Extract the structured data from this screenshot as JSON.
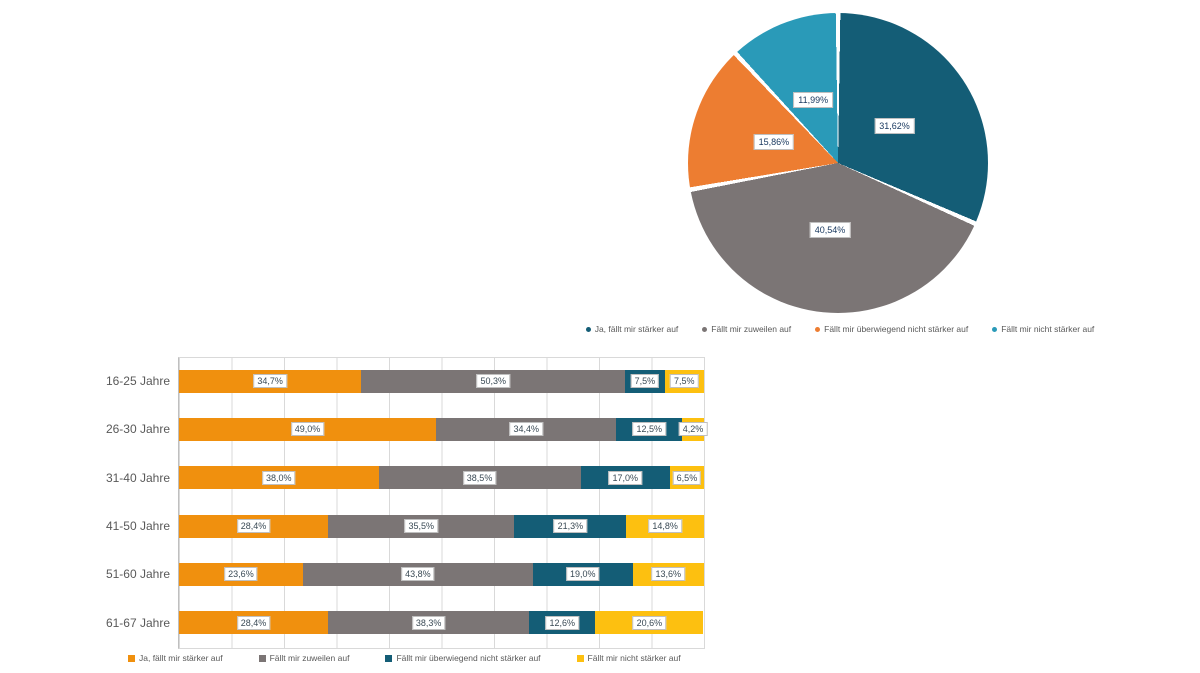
{
  "page": {
    "background": "#ffffff"
  },
  "chart_data": [
    {
      "type": "pie",
      "title": "",
      "labels": [
        "Ja, fällt mir stärker auf",
        "Fällt mir zuweilen auf",
        "Fällt mir überwiegend nicht stärker auf",
        "Fällt mir nicht stärker auf"
      ],
      "values": [
        31.62,
        40.54,
        15.86,
        11.99
      ],
      "value_labels": [
        "31,62%",
        "40,54%",
        "15,86%",
        "11,99%"
      ],
      "colors": [
        "#145d76",
        "#7b7575",
        "#ed7d31",
        "#2a9ab8"
      ],
      "start_angle": "top",
      "direction": "clockwise",
      "legend_position": "bottom"
    },
    {
      "type": "bar",
      "orientation": "horizontal-stacked",
      "title": "",
      "xlabel": "",
      "ylabel": "",
      "xlim": [
        0,
        100
      ],
      "gridlines": "vertical, every 10%",
      "categories": [
        "16-25 Jahre",
        "26-30 Jahre",
        "31-40 Jahre",
        "41-50 Jahre",
        "51-60 Jahre",
        "61-67 Jahre"
      ],
      "series": [
        {
          "name": "Ja, fällt mir stärker auf",
          "color": "#f0900e",
          "values": [
            34.7,
            49.0,
            38.0,
            28.4,
            23.6,
            28.4
          ]
        },
        {
          "name": "Fällt mir zuweilen auf",
          "color": "#7b7575",
          "values": [
            50.3,
            34.4,
            38.5,
            35.5,
            43.8,
            38.3
          ]
        },
        {
          "name": "Fällt mir überwiegend nicht stärker auf",
          "color": "#145d76",
          "values": [
            7.5,
            12.5,
            17.0,
            21.3,
            19.0,
            12.6
          ]
        },
        {
          "name": "Fällt mir nicht stärker auf",
          "color": "#fdc010",
          "values": [
            7.5,
            4.2,
            6.5,
            14.8,
            13.6,
            20.6
          ]
        }
      ],
      "value_labels": [
        [
          "34,7%",
          "50,3%",
          "7,5%",
          "7,5%"
        ],
        [
          "49,0%",
          "34,4%",
          "12,5%",
          "4,2%"
        ],
        [
          "38,0%",
          "38,5%",
          "17,0%",
          "6,5%"
        ],
        [
          "28,4%",
          "35,5%",
          "21,3%",
          "14,8%"
        ],
        [
          "23,6%",
          "43,8%",
          "19,0%",
          "13,6%"
        ],
        [
          "28,4%",
          "38,3%",
          "12,6%",
          "20,6%"
        ]
      ],
      "legend_position": "bottom"
    }
  ]
}
